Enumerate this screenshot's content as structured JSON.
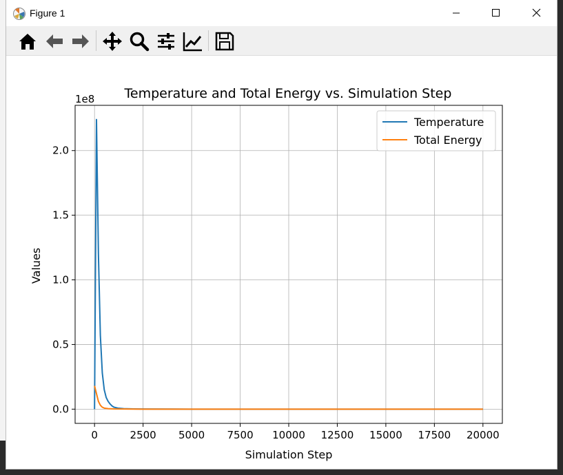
{
  "window": {
    "title": "Figure 1",
    "icon": "matplotlib-icon"
  },
  "window_controls": [
    "minimize-icon",
    "maximize-icon",
    "close-icon"
  ],
  "toolbar": {
    "buttons": [
      "home-icon",
      "back-icon",
      "forward-icon",
      "pan-icon",
      "zoom-icon",
      "configure-subplots-icon",
      "edit-axis-icon",
      "save-icon"
    ]
  },
  "colors": {
    "temperature": "#1f77b4",
    "total_energy": "#ff7f0e",
    "grid": "#b0b0b0"
  },
  "chart_data": {
    "type": "line",
    "title": "Temperature and Total Energy vs. Simulation Step",
    "xlabel": "Simulation Step",
    "ylabel": "Values",
    "y_offset_label": "1e8",
    "xlim": [
      -1000,
      21000
    ],
    "ylim": [
      -0.11,
      2.35
    ],
    "xticks": [
      0,
      2500,
      5000,
      7500,
      10000,
      12500,
      15000,
      17500,
      20000
    ],
    "xtick_labels": [
      "0",
      "2500",
      "5000",
      "7500",
      "10000",
      "12500",
      "15000",
      "17500",
      "20000"
    ],
    "yticks": [
      0.0,
      0.5,
      1.0,
      1.5,
      2.0
    ],
    "ytick_labels": [
      "0.0",
      "0.5",
      "1.0",
      "1.5",
      "2.0"
    ],
    "grid": true,
    "legend": "top-right",
    "series": [
      {
        "name": "Temperature",
        "color": "#1f77b4",
        "x": [
          0,
          100,
          200,
          300,
          400,
          500,
          600,
          700,
          800,
          900,
          1000,
          1200,
          1500,
          2000,
          2500,
          5000,
          10000,
          15000,
          20000
        ],
        "y": [
          0.0,
          2.24,
          1.2,
          0.57,
          0.28,
          0.15,
          0.09,
          0.06,
          0.04,
          0.025,
          0.015,
          0.008,
          0.004,
          0.002,
          0.001,
          0.0,
          0.0,
          0.0,
          0.0
        ]
      },
      {
        "name": "Total Energy",
        "color": "#ff7f0e",
        "x": [
          0,
          100,
          200,
          300,
          400,
          500,
          700,
          1000,
          1500,
          2500,
          5000,
          10000,
          15000,
          20000
        ],
        "y": [
          0.18,
          0.12,
          0.06,
          0.03,
          0.015,
          0.008,
          0.004,
          0.002,
          0.001,
          0.0,
          0.0,
          0.0,
          0.0,
          0.0
        ]
      }
    ]
  }
}
